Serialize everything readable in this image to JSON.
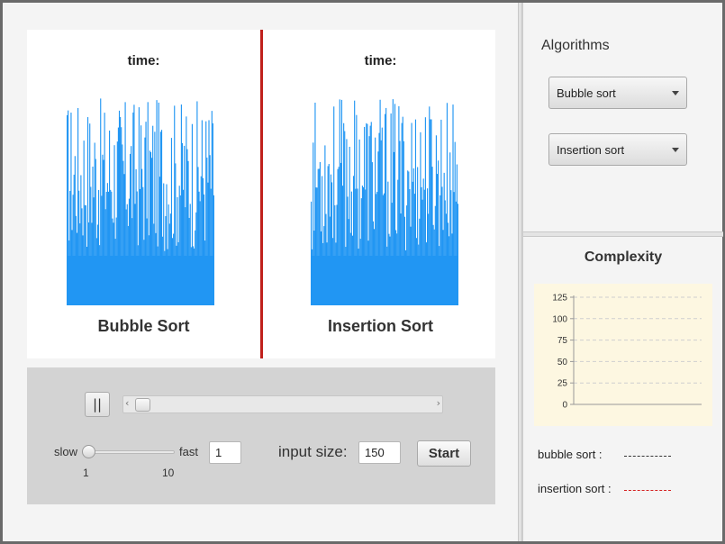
{
  "visualizer": {
    "left_panel": {
      "time_label": "time:",
      "title": "Bubble Sort"
    },
    "right_panel": {
      "time_label": "time:",
      "title": "Insertion Sort"
    },
    "bar_color": "#2196f3",
    "divider_color": "#c0201c"
  },
  "controls": {
    "pause_label": "||",
    "scroll_left": "‹",
    "scroll_right": "›",
    "speed": {
      "slow_label": "slow",
      "fast_label": "fast",
      "min_tick": "1",
      "max_tick": "10",
      "value": "1",
      "slider_fraction": 0
    },
    "input_size_label": "input size:",
    "input_size_value": "150",
    "start_label": "Start"
  },
  "sidebar": {
    "algorithms_title": "Algorithms",
    "algorithm_1": "Bubble sort",
    "algorithm_2": "Insertion sort"
  },
  "complexity": {
    "title": "Complexity",
    "legend": [
      {
        "label": "bubble sort :",
        "color": "#333333"
      },
      {
        "label": "insertion sort :",
        "color": "#d42020"
      }
    ]
  },
  "chart_data": {
    "type": "line",
    "title": "Complexity",
    "xlabel": "",
    "ylabel": "",
    "ylim": [
      0,
      125
    ],
    "yticks": [
      "0",
      "25",
      "50",
      "75",
      "100",
      "125"
    ],
    "grid": true,
    "series": [
      {
        "name": "bubble sort",
        "values": []
      },
      {
        "name": "insertion sort",
        "values": []
      }
    ]
  }
}
